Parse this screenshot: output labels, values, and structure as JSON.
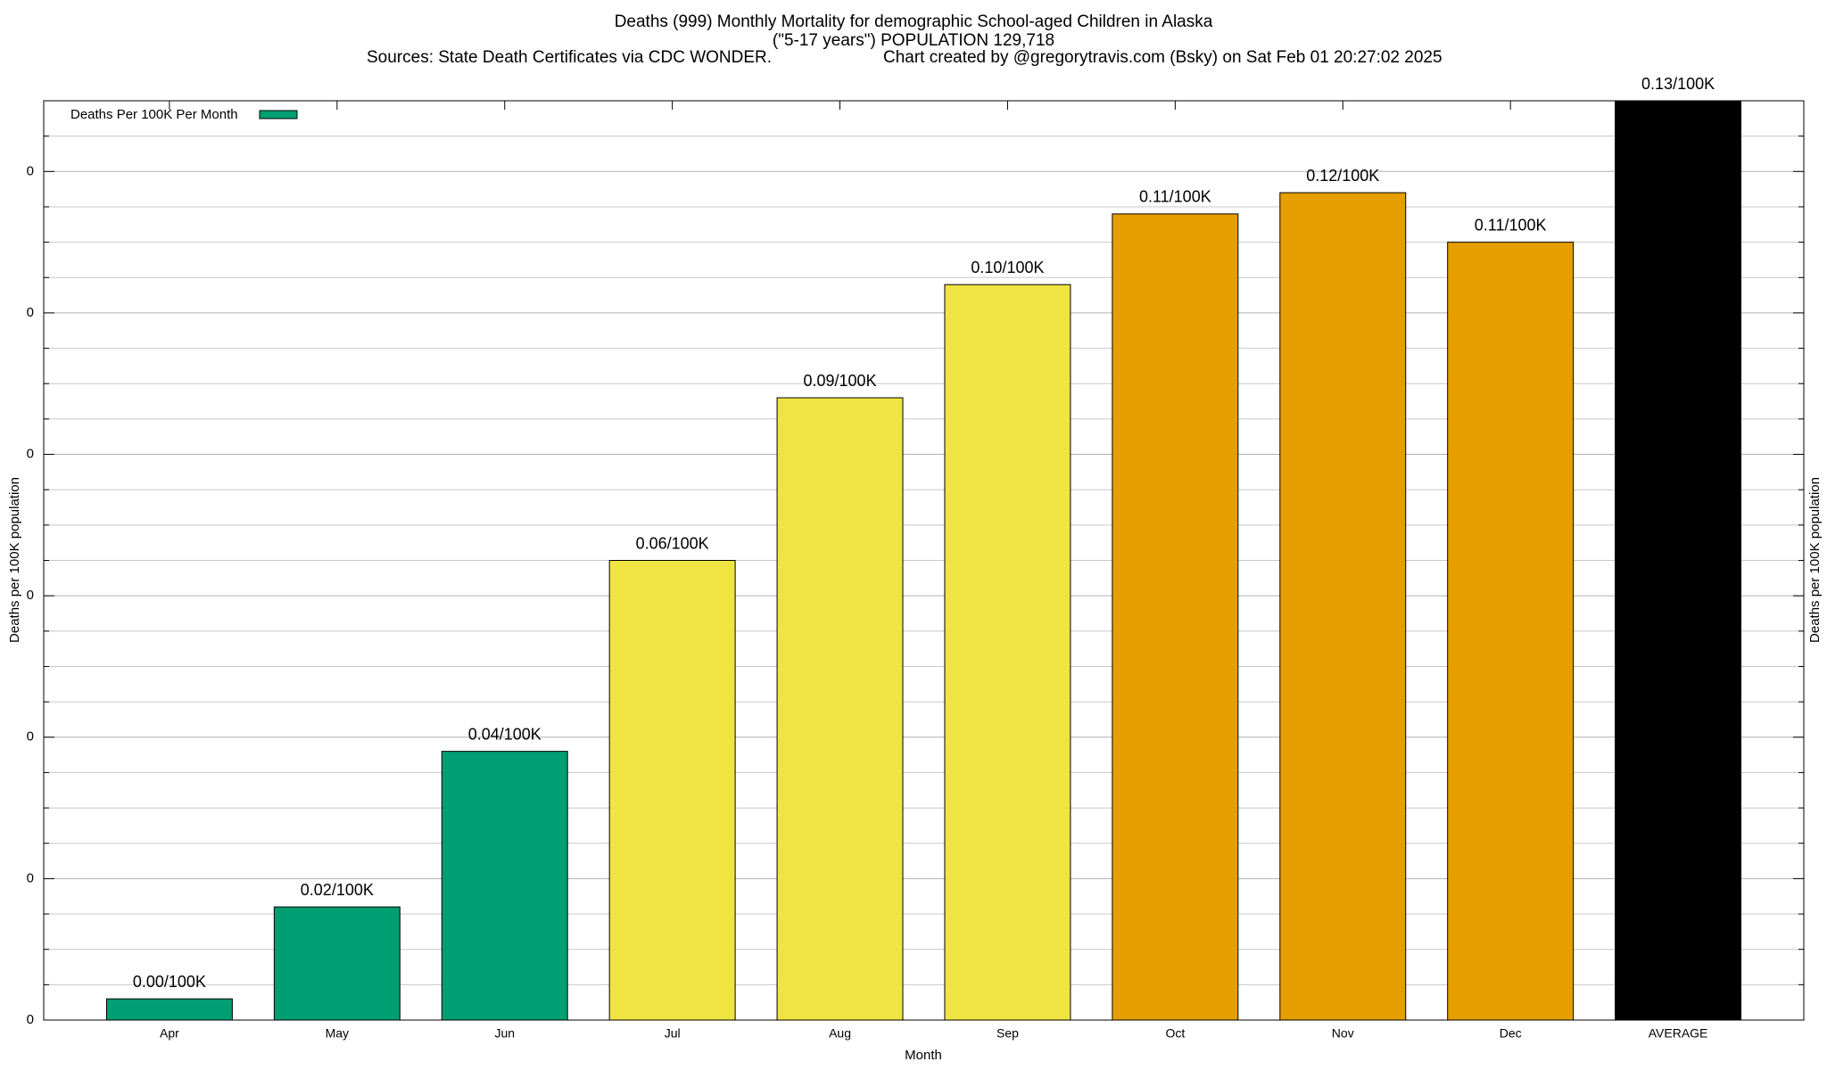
{
  "chart_data": {
    "type": "bar",
    "title": "Deaths (999) Monthly Mortality for demographic School-aged Children in Alaska",
    "subtitle": "(\"5-17 years\") POPULATION 129,718",
    "source": "Sources: State Death Certificates via CDC WONDER.",
    "credit": "Chart created by @gregorytravis.com (Bsky) on Sat Feb 01 20:27:02 2025",
    "xlabel": "Month",
    "ylabel": "Deaths per 100K population",
    "categories": [
      "Apr",
      "May",
      "Jun",
      "Jul",
      "Aug",
      "Sep",
      "Oct",
      "Nov",
      "Dec",
      "AVERAGE"
    ],
    "series": [
      {
        "name": "Deaths Per 100K Per Month",
        "color": "#009e73",
        "values": [
          0.003,
          0.016,
          0.038,
          0.065,
          0.088,
          0.104,
          0.114,
          0.117,
          0.11,
          0.13
        ],
        "value_labels": [
          "0.00/100K",
          "0.02/100K",
          "0.04/100K",
          "0.06/100K",
          "0.09/100K",
          "0.10/100K",
          "0.11/100K",
          "0.12/100K",
          "0.11/100K",
          "0.13/100K"
        ],
        "colors": [
          "#009e73",
          "#009e73",
          "#009e73",
          "#f0e442",
          "#f0e442",
          "#f0e442",
          "#e69f00",
          "#e69f00",
          "#e69f00",
          "#000000"
        ]
      }
    ],
    "ylim": [
      0,
      0.13
    ],
    "yticks": [
      0,
      {
        "value": 0.02,
        "label": "0"
      },
      {
        "value": 0.04,
        "label": "0"
      },
      {
        "value": 0.06,
        "label": "0"
      },
      {
        "value": 0.08,
        "label": "0"
      },
      {
        "value": 0.1,
        "label": "0"
      },
      {
        "value": 0.12,
        "label": "0"
      }
    ],
    "yminorticks": [
      0.005,
      0.01,
      0.015,
      0.025,
      0.03,
      0.035,
      0.045,
      0.05,
      0.055,
      0.065,
      0.07,
      0.075,
      0.085,
      0.09,
      0.095,
      0.105,
      0.11,
      0.115,
      0.125
    ],
    "grid": true,
    "legend": "top-left"
  }
}
